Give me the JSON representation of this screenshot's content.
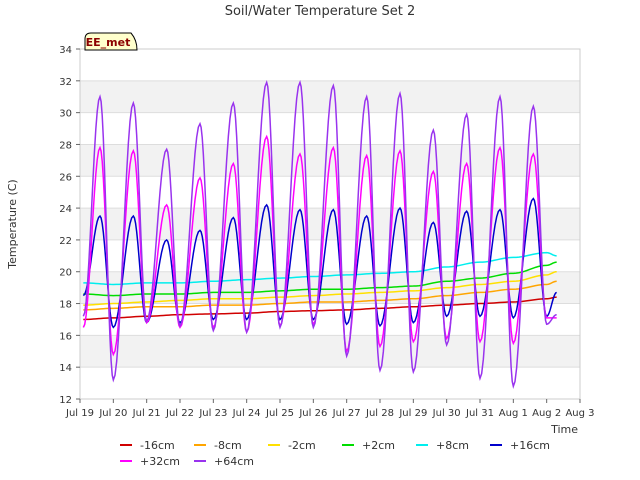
{
  "chart_data": {
    "type": "line",
    "title": "Soil/Water Temperature Set 2",
    "xlabel": "Time",
    "ylabel": "Temperature (C)",
    "badge": "EE_met",
    "xlim": [
      0,
      15
    ],
    "ylim": [
      12,
      34
    ],
    "yticks": [
      12,
      14,
      16,
      18,
      20,
      22,
      24,
      26,
      28,
      30,
      32,
      34
    ],
    "xticks": [
      {
        "x": 0,
        "label": "Jul 19"
      },
      {
        "x": 1,
        "label": "Jul 20"
      },
      {
        "x": 2,
        "label": "Jul 21"
      },
      {
        "x": 3,
        "label": "Jul 22"
      },
      {
        "x": 4,
        "label": "Jul 23"
      },
      {
        "x": 5,
        "label": "Jul 24"
      },
      {
        "x": 6,
        "label": "Jul 25"
      },
      {
        "x": 7,
        "label": "Jul 26"
      },
      {
        "x": 8,
        "label": "Jul 27"
      },
      {
        "x": 9,
        "label": "Jul 28"
      },
      {
        "x": 10,
        "label": "Jul 29"
      },
      {
        "x": 11,
        "label": "Jul 30"
      },
      {
        "x": 12,
        "label": "Jul 31"
      },
      {
        "x": 13,
        "label": "Aug 1"
      },
      {
        "x": 14,
        "label": "Aug 2"
      },
      {
        "x": 15,
        "label": "Aug 3"
      }
    ],
    "grid": "horizontal bands",
    "legend_position": "bottom",
    "series": [
      {
        "name": "-16cm",
        "color": "#d00000",
        "x": [
          0.1,
          1,
          2,
          3,
          4,
          5,
          6,
          7,
          8,
          9,
          10,
          11,
          12,
          13,
          14,
          14.3
        ],
        "y": [
          17.0,
          17.1,
          17.2,
          17.3,
          17.35,
          17.4,
          17.5,
          17.55,
          17.6,
          17.7,
          17.8,
          17.9,
          18.0,
          18.1,
          18.3,
          18.4
        ]
      },
      {
        "name": "-8cm",
        "color": "#ffa500",
        "x": [
          0.1,
          1,
          2,
          3,
          4,
          5,
          6,
          7,
          8,
          9,
          10,
          11,
          12,
          13,
          14,
          14.3
        ],
        "y": [
          17.6,
          17.7,
          17.8,
          17.8,
          17.9,
          17.9,
          18.0,
          18.1,
          18.1,
          18.2,
          18.3,
          18.5,
          18.7,
          18.9,
          19.2,
          19.4
        ]
      },
      {
        "name": "-2cm",
        "color": "#ffe000",
        "x": [
          0.1,
          1,
          2,
          3,
          4,
          5,
          6,
          7,
          8,
          9,
          10,
          11,
          12,
          13,
          14,
          14.3
        ],
        "y": [
          17.9,
          18.0,
          18.1,
          18.2,
          18.3,
          18.3,
          18.4,
          18.5,
          18.6,
          18.7,
          18.8,
          19.0,
          19.2,
          19.4,
          19.8,
          20.0
        ]
      },
      {
        "name": "+2cm",
        "color": "#00dd00",
        "x": [
          0.1,
          1,
          2,
          3,
          4,
          5,
          6,
          7,
          8,
          9,
          10,
          11,
          12,
          13,
          14,
          14.3
        ],
        "y": [
          18.6,
          18.5,
          18.6,
          18.6,
          18.7,
          18.7,
          18.8,
          18.9,
          18.9,
          19.0,
          19.1,
          19.4,
          19.6,
          19.9,
          20.4,
          20.6
        ]
      },
      {
        "name": "+8cm",
        "color": "#00eeee",
        "x": [
          0.1,
          1,
          2,
          3,
          4,
          5,
          6,
          7,
          8,
          9,
          10,
          11,
          12,
          13,
          14,
          14.3
        ],
        "y": [
          19.3,
          19.2,
          19.3,
          19.3,
          19.4,
          19.5,
          19.6,
          19.7,
          19.8,
          19.9,
          20.0,
          20.3,
          20.6,
          20.9,
          21.2,
          21.0
        ]
      },
      {
        "name": "+16cm",
        "color": "#0000cc",
        "x": [
          0.1,
          0.6,
          1.0,
          1.6,
          2.0,
          2.6,
          3.0,
          3.6,
          4.0,
          4.6,
          5.0,
          5.6,
          6.0,
          6.6,
          7.0,
          7.6,
          8.0,
          8.6,
          9.0,
          9.6,
          10.0,
          10.6,
          11.0,
          11.6,
          12.0,
          12.6,
          13.0,
          13.6,
          14.0,
          14.3
        ],
        "y": [
          18.5,
          23.5,
          16.5,
          23.5,
          16.8,
          22.0,
          16.8,
          22.6,
          17.0,
          23.4,
          17.0,
          24.2,
          17.0,
          23.9,
          17.0,
          23.9,
          16.7,
          23.5,
          16.6,
          24.0,
          16.8,
          23.1,
          17.2,
          23.8,
          17.2,
          23.9,
          17.1,
          24.6,
          17.2,
          18.7
        ]
      },
      {
        "name": "+32cm",
        "color": "#ff00ff",
        "x": [
          0.1,
          0.6,
          1.0,
          1.6,
          2.0,
          2.6,
          3.0,
          3.6,
          4.0,
          4.6,
          5.0,
          5.6,
          6.0,
          6.6,
          7.0,
          7.6,
          8.0,
          8.6,
          9.0,
          9.6,
          10.0,
          10.6,
          11.0,
          11.6,
          12.0,
          12.6,
          13.0,
          13.6,
          14.0,
          14.3
        ],
        "y": [
          16.5,
          27.8,
          14.8,
          27.6,
          16.8,
          24.2,
          16.5,
          25.9,
          16.5,
          26.8,
          16.2,
          28.5,
          16.6,
          27.4,
          16.7,
          27.8,
          15.0,
          27.3,
          15.3,
          27.6,
          15.6,
          26.3,
          15.8,
          26.8,
          15.6,
          27.8,
          15.5,
          27.4,
          17.1,
          17.1
        ]
      },
      {
        "name": "+64cm",
        "color": "#9933ee",
        "x": [
          0.1,
          0.6,
          1.0,
          1.6,
          2.0,
          2.6,
          3.0,
          3.6,
          4.0,
          4.6,
          5.0,
          5.6,
          6.0,
          6.6,
          7.0,
          7.6,
          8.0,
          8.6,
          9.0,
          9.6,
          10.0,
          10.6,
          11.0,
          11.6,
          12.0,
          12.6,
          13.0,
          13.6,
          14.0,
          14.3
        ],
        "y": [
          17.2,
          31.0,
          13.2,
          30.6,
          16.9,
          27.7,
          16.6,
          29.3,
          16.3,
          30.6,
          16.2,
          31.9,
          16.5,
          31.9,
          16.5,
          31.7,
          14.7,
          31.0,
          13.8,
          31.2,
          13.7,
          28.9,
          15.4,
          29.9,
          13.3,
          31.0,
          12.8,
          30.4,
          16.7,
          17.3
        ]
      }
    ]
  }
}
